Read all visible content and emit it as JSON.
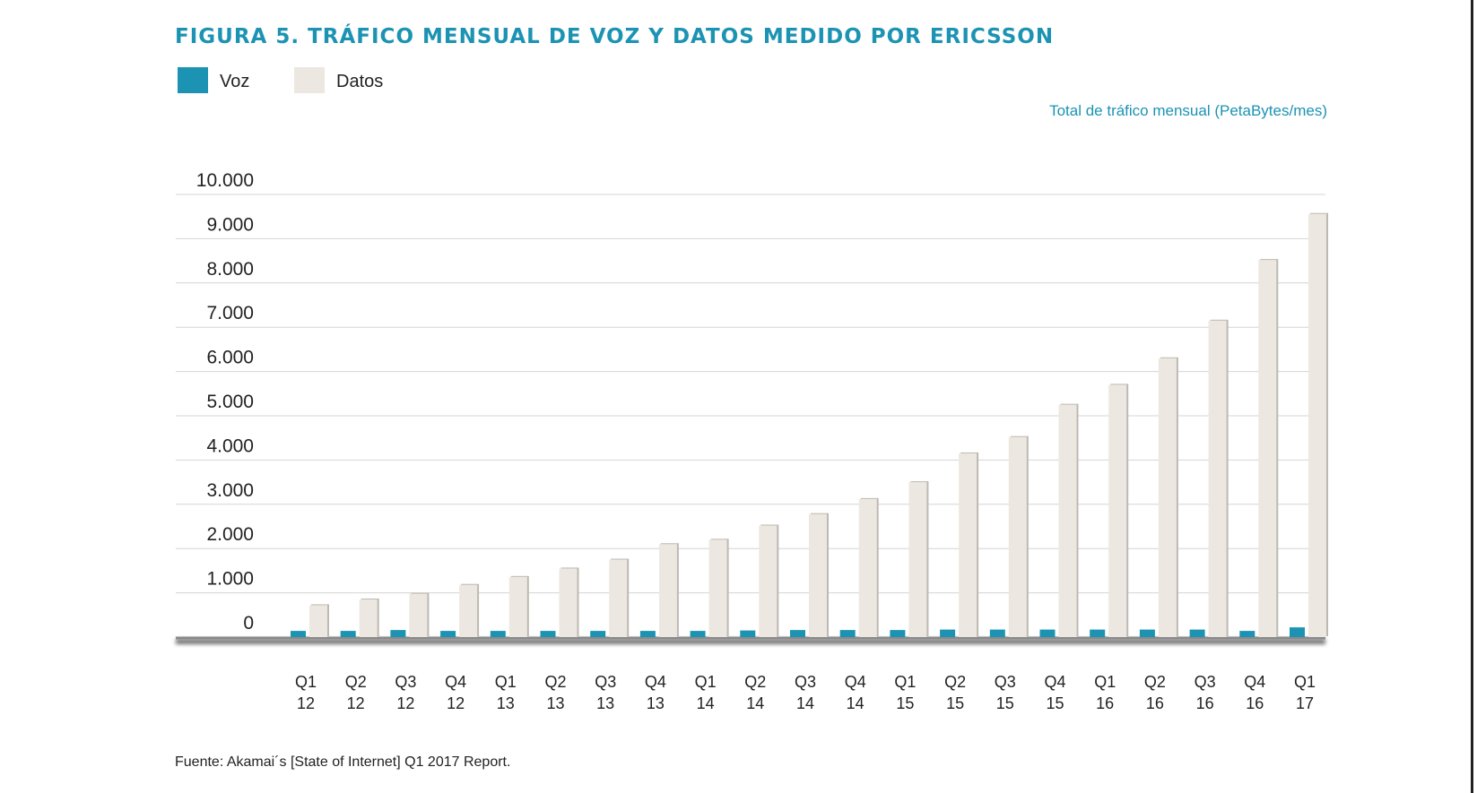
{
  "title": "FIGURA 5.  TRÁFICO MENSUAL DE VOZ Y DATOS MEDIDO POR ERICSSON",
  "legend": [
    {
      "label": "Voz",
      "color": "#1c93b3"
    },
    {
      "label": "Datos",
      "color": "#ece8e1"
    }
  ],
  "unit_label": "Total de tráfico mensual (PetaBytes/mes)",
  "source": "Fuente: Akamai´s [State of Internet] Q1 2017 Report.",
  "chart_data": {
    "type": "bar",
    "title": "FIGURA 5.  TRÁFICO MENSUAL DE VOZ Y DATOS MEDIDO POR ERICSSON",
    "ylabel": "Total de tráfico mensual (PetaBytes/mes)",
    "ylim": [
      0,
      10000
    ],
    "y_ticks": [
      "0",
      "1.000",
      "2.000",
      "3.000",
      "4.000",
      "5.000",
      "6.000",
      "7.000",
      "8.000",
      "9.000",
      "10.000"
    ],
    "y_tick_values": [
      0,
      1000,
      2000,
      3000,
      4000,
      5000,
      6000,
      7000,
      8000,
      9000,
      10000
    ],
    "categories": [
      [
        "Q1",
        "12"
      ],
      [
        "Q2",
        "12"
      ],
      [
        "Q3",
        "12"
      ],
      [
        "Q4",
        "12"
      ],
      [
        "Q1",
        "13"
      ],
      [
        "Q2",
        "13"
      ],
      [
        "Q3",
        "13"
      ],
      [
        "Q4",
        "13"
      ],
      [
        "Q1",
        "14"
      ],
      [
        "Q2",
        "14"
      ],
      [
        "Q3",
        "14"
      ],
      [
        "Q4",
        "14"
      ],
      [
        "Q1",
        "15"
      ],
      [
        "Q2",
        "15"
      ],
      [
        "Q3",
        "15"
      ],
      [
        "Q4",
        "15"
      ],
      [
        "Q1",
        "16"
      ],
      [
        "Q2",
        "16"
      ],
      [
        "Q3",
        "16"
      ],
      [
        "Q4",
        "16"
      ],
      [
        "Q1",
        "17"
      ]
    ],
    "series": [
      {
        "name": "Voz",
        "color": "#1c93b3",
        "values": [
          140,
          140,
          160,
          140,
          140,
          140,
          140,
          140,
          140,
          150,
          160,
          160,
          160,
          170,
          170,
          170,
          170,
          170,
          170,
          140,
          220
        ]
      },
      {
        "name": "Datos",
        "color": "#ece8e1",
        "values": [
          720,
          850,
          980,
          1180,
          1360,
          1550,
          1750,
          2100,
          2200,
          2520,
          2780,
          3120,
          3500,
          4150,
          4520,
          5250,
          5700,
          6300,
          7150,
          8520,
          9560
        ]
      }
    ],
    "grid": true,
    "legend_position": "top-left"
  }
}
